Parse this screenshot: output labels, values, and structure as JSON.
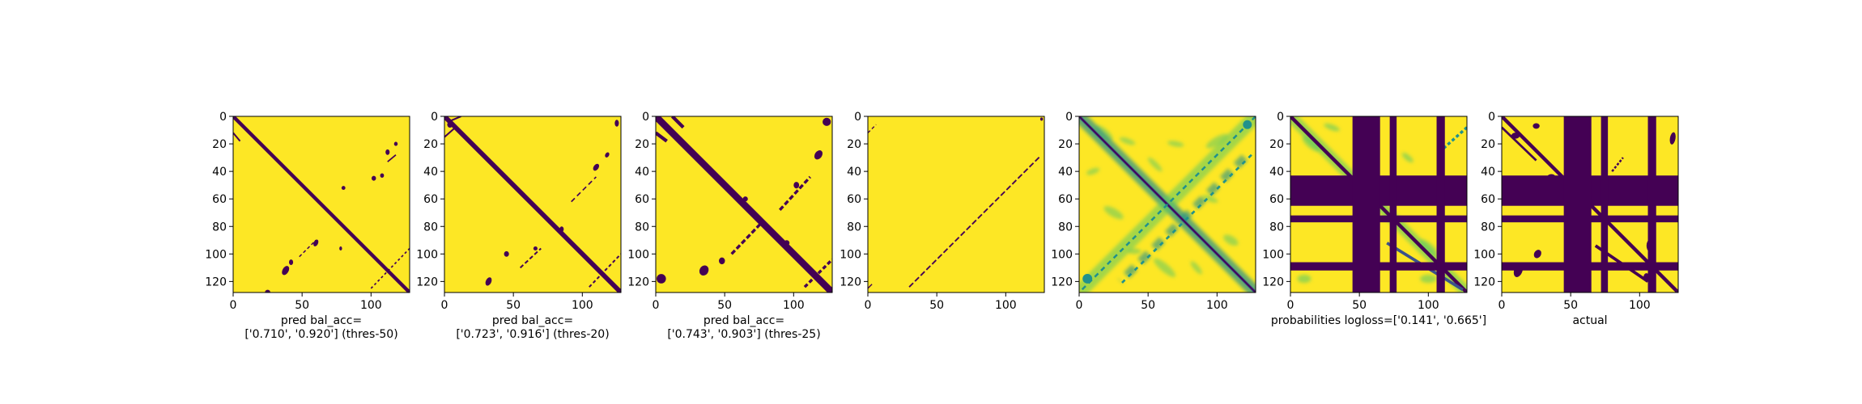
{
  "colors": {
    "low": "#440154",
    "high": "#fde725",
    "mid": "#21918c",
    "mid2": "#5ec962",
    "mid3": "#3b528b"
  },
  "chart_data": [
    {
      "type": "heatmap",
      "title": "",
      "xlabel": "pred bal_acc=\n['0.710', '0.920'] (thres-50)",
      "xlabel_lines": [
        "pred bal_acc=",
        "['0.710', '0.920'] (thres-50)"
      ],
      "x_ticks": [
        0,
        50,
        100
      ],
      "y_ticks": [
        0,
        20,
        40,
        60,
        80,
        100,
        120
      ],
      "xlim": [
        0,
        128
      ],
      "ylim": [
        128,
        0
      ],
      "colormap": "viridis",
      "value_range": [
        0,
        1
      ],
      "content": "binary contact prediction; 0-valued band along the main diagonal (width ~3), sparse secondary anti-diagonal fragments near (40,112), (90,80), (115,45)"
    },
    {
      "type": "heatmap",
      "title": "",
      "xlabel": "pred bal_acc=\n['0.723', '0.916'] (thres-20)",
      "xlabel_lines": [
        "pred bal_acc=",
        "['0.723', '0.916'] (thres-20)"
      ],
      "x_ticks": [
        0,
        50,
        100
      ],
      "y_ticks": [
        0,
        20,
        40,
        60,
        80,
        100,
        120
      ],
      "xlim": [
        0,
        128
      ],
      "ylim": [
        128,
        0
      ],
      "colormap": "viridis",
      "value_range": [
        0,
        1
      ],
      "content": "binary contact prediction; 0-valued band along main diagonal (width ~4) with more off-diagonal fragments than panel 1"
    },
    {
      "type": "heatmap",
      "title": "",
      "xlabel": "pred bal_acc=\n['0.743', '0.903'] (thres-25)",
      "xlabel_lines": [
        "pred bal_acc=",
        "['0.743', '0.903'] (thres-25)"
      ],
      "x_ticks": [
        0,
        50,
        100
      ],
      "y_ticks": [
        0,
        20,
        40,
        60,
        80,
        100,
        120
      ],
      "xlim": [
        0,
        128
      ],
      "ylim": [
        128,
        0
      ],
      "colormap": "viridis",
      "value_range": [
        0,
        1
      ],
      "content": "binary contact prediction; thick 0-valued main diagonal band (width ~6) plus parallel off-diagonal fragments"
    },
    {
      "type": "heatmap",
      "title": "",
      "xlabel": "",
      "xlabel_lines": [],
      "x_ticks": [
        0,
        50,
        100
      ],
      "y_ticks": [
        0,
        20,
        40,
        60,
        80,
        100,
        120
      ],
      "xlim": [
        0,
        128
      ],
      "ylim": [
        128,
        0
      ],
      "colormap": "viridis",
      "value_range": [
        0,
        1
      ],
      "content": "nearly uniform high values with a thin dashed 0-valued anti-diagonal line"
    },
    {
      "type": "heatmap",
      "title": "",
      "xlabel": "",
      "xlabel_lines": [],
      "x_ticks": [
        0,
        50,
        100
      ],
      "y_ticks": [
        0,
        20,
        40,
        60,
        80,
        100,
        120
      ],
      "xlim": [
        0,
        128
      ],
      "ylim": [
        128,
        0
      ],
      "colormap": "viridis",
      "value_range": [
        0,
        1
      ],
      "content": "continuous scores; dark main diagonal, teal/green diffuse anti-diagonal structure"
    },
    {
      "type": "heatmap",
      "title": "",
      "xlabel": "probabilities logloss=['0.141', '0.665']",
      "xlabel_lines": [
        "probabilities logloss=['0.141', '0.665']"
      ],
      "x_ticks": [
        0,
        50,
        100
      ],
      "y_ticks": [
        0,
        20,
        40,
        60,
        80,
        100,
        120
      ],
      "xlim": [
        0,
        128
      ],
      "ylim": [
        128,
        0
      ],
      "colormap": "viridis",
      "value_range": [
        0,
        1
      ],
      "content": "probabilities with masked (0) row/column bands at ~44-66, ~72-80, ~108-114"
    },
    {
      "type": "heatmap",
      "title": "",
      "xlabel": "actual",
      "xlabel_lines": [
        "actual"
      ],
      "x_ticks": [
        0,
        50,
        100
      ],
      "y_ticks": [
        0,
        20,
        40,
        60,
        80,
        100,
        120
      ],
      "xlim": [
        0,
        128
      ],
      "ylim": [
        128,
        0
      ],
      "colormap": "viridis",
      "value_range": [
        0,
        1
      ],
      "content": "ground-truth contacts with masked (0) row/column bands at ~44-66, ~72-80, ~108-114"
    }
  ]
}
